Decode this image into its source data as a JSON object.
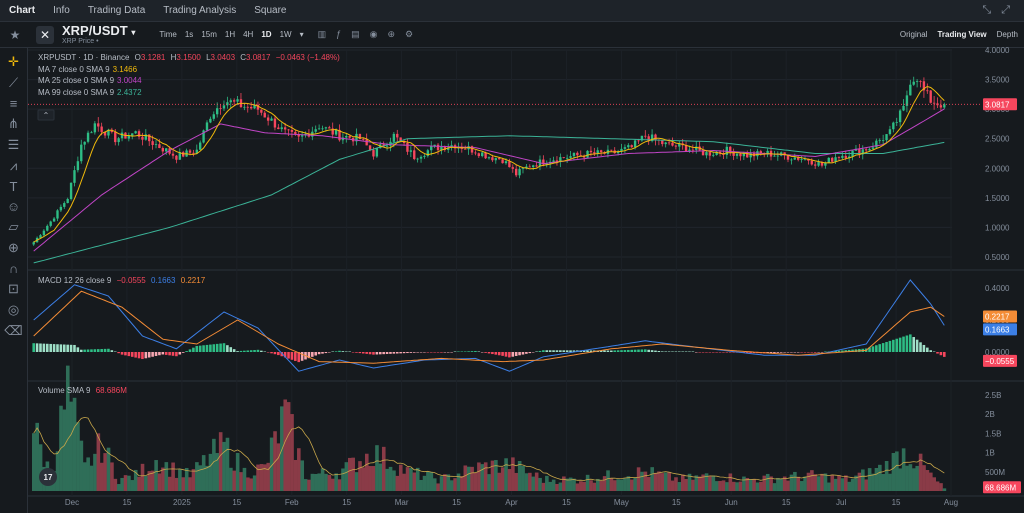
{
  "nav": {
    "tabs": [
      "Chart",
      "Info",
      "Trading Data",
      "Trading Analysis",
      "Square"
    ],
    "active_tab": "Chart"
  },
  "header": {
    "pair": "XRP/USDT",
    "subtitle": "XRP Price",
    "timeframes": [
      "Time",
      "1s",
      "15m",
      "1H",
      "4H",
      "1D",
      "1W"
    ],
    "active_timeframe": "1D",
    "views": [
      "Original",
      "Trading View",
      "Depth"
    ],
    "active_view": "Trading View"
  },
  "sidebar_icons": [
    "crosshair-icon",
    "trendline-icon",
    "horizontal-lines-icon",
    "fork-icon",
    "fib-icon",
    "pattern-icon",
    "text-icon",
    "emoji-icon",
    "ruler-icon",
    "zoom-in-icon",
    "magnet-icon",
    "lock-icon",
    "eye-icon",
    "trash-icon"
  ],
  "legend": {
    "title": "XRPUSDT · 1D · Binance",
    "o_label": "O",
    "o": "3.1281",
    "h_label": "H",
    "h": "3.1500",
    "l_label": "L",
    "l": "3.0403",
    "c_label": "C",
    "c": "3.0817",
    "change": "−0.0463 (−1.48%)",
    "ma7_label": "MA 7 close 0 SMA 9",
    "ma7": "3.1466",
    "ma25_label": "MA 25 close 0 SMA 9",
    "ma25": "3.0044",
    "ma99_label": "MA 99 close 0 SMA 9",
    "ma99": "2.4372"
  },
  "macd_legend": {
    "label": "MACD 12 26 close 9",
    "hist": "−0.0555",
    "macd": "0.1663",
    "signal": "0.2217"
  },
  "volume_legend": {
    "label": "Volume SMA 9",
    "value": "68.686M"
  },
  "colors": {
    "up": "#2ebd85",
    "down": "#f6465d",
    "ma7": "#f0b90b",
    "ma25": "#c145c7",
    "ma99": "#3bb397",
    "macd": "#3c7fe6",
    "signal": "#f48c36"
  },
  "chart_data": {
    "type": "candlestick",
    "price_axis": [
      "4.0000",
      "3.5000",
      "3.0000",
      "2.5000",
      "2.0000",
      "1.5000",
      "1.0000",
      "0.5000"
    ],
    "price_axis_values": [
      4.0,
      3.5,
      3.0,
      2.5,
      2.0,
      1.5,
      1.0,
      0.5
    ],
    "last_price": "3.0817",
    "last_price_value": 3.0817,
    "macd_axis": [
      "0.4000",
      "0.2000",
      "0.0000"
    ],
    "macd_axis_values": [
      0.4,
      0.2,
      0.0
    ],
    "macd_badges": [
      "0.2217",
      "0.1663",
      "−0.0555"
    ],
    "volume_axis": [
      "2.5B",
      "2B",
      "1.5B",
      "1B",
      "500M"
    ],
    "volume_axis_values": [
      2.5,
      2.0,
      1.5,
      1.0,
      0.5
    ],
    "volume_badge": "68.686M",
    "x_labels": [
      "Dec",
      "15",
      "2025",
      "15",
      "Feb",
      "15",
      "Mar",
      "15",
      "Apr",
      "15",
      "May",
      "15",
      "Jun",
      "15",
      "Jul",
      "15",
      "Aug"
    ],
    "price_keypoints": [
      [
        0,
        0.75
      ],
      [
        5,
        1.1
      ],
      [
        10,
        1.5
      ],
      [
        14,
        2.4
      ],
      [
        18,
        2.75
      ],
      [
        24,
        2.5
      ],
      [
        30,
        2.6
      ],
      [
        36,
        2.4
      ],
      [
        42,
        2.2
      ],
      [
        48,
        2.3
      ],
      [
        52,
        2.9
      ],
      [
        56,
        3.15
      ],
      [
        62,
        3.05
      ],
      [
        66,
        3.0
      ],
      [
        70,
        2.8
      ],
      [
        74,
        2.6
      ],
      [
        78,
        2.5
      ],
      [
        84,
        2.72
      ],
      [
        90,
        2.55
      ],
      [
        96,
        2.5
      ],
      [
        100,
        2.25
      ],
      [
        106,
        2.55
      ],
      [
        112,
        2.2
      ],
      [
        118,
        2.35
      ],
      [
        124,
        2.4
      ],
      [
        130,
        2.3
      ],
      [
        134,
        2.2
      ],
      [
        138,
        2.15
      ],
      [
        142,
        1.9
      ],
      [
        146,
        2.05
      ],
      [
        152,
        2.15
      ],
      [
        158,
        2.2
      ],
      [
        164,
        2.25
      ],
      [
        170,
        2.25
      ],
      [
        176,
        2.35
      ],
      [
        180,
        2.55
      ],
      [
        186,
        2.4
      ],
      [
        192,
        2.35
      ],
      [
        198,
        2.25
      ],
      [
        204,
        2.3
      ],
      [
        210,
        2.22
      ],
      [
        216,
        2.25
      ],
      [
        222,
        2.2
      ],
      [
        228,
        2.15
      ],
      [
        232,
        2.05
      ],
      [
        236,
        2.2
      ],
      [
        240,
        2.25
      ],
      [
        246,
        2.35
      ],
      [
        252,
        2.6
      ],
      [
        256,
        3.0
      ],
      [
        258,
        3.5
      ],
      [
        260,
        3.55
      ],
      [
        262,
        3.3
      ],
      [
        264,
        3.15
      ],
      [
        266,
        3.1
      ],
      [
        268,
        3.0817
      ]
    ],
    "ma_keypoints": {
      "ma25": [
        [
          0,
          0.6
        ],
        [
          20,
          1.55
        ],
        [
          40,
          2.3
        ],
        [
          55,
          2.75
        ],
        [
          68,
          2.6
        ],
        [
          85,
          2.55
        ],
        [
          105,
          2.4
        ],
        [
          130,
          2.35
        ],
        [
          150,
          2.08
        ],
        [
          175,
          2.25
        ],
        [
          200,
          2.3
        ],
        [
          230,
          2.2
        ],
        [
          250,
          2.4
        ],
        [
          262,
          2.8
        ],
        [
          268,
          3.0044
        ]
      ],
      "ma99": [
        [
          0,
          0.4
        ],
        [
          40,
          1.0
        ],
        [
          70,
          1.55
        ],
        [
          90,
          2.15
        ],
        [
          110,
          2.5
        ],
        [
          140,
          2.55
        ],
        [
          170,
          2.5
        ],
        [
          200,
          2.45
        ],
        [
          230,
          2.25
        ],
        [
          250,
          2.25
        ],
        [
          268,
          2.4372
        ]
      ]
    },
    "macd_keypoints": {
      "macd": [
        [
          0,
          0.2
        ],
        [
          12,
          0.42
        ],
        [
          22,
          0.35
        ],
        [
          32,
          0.1
        ],
        [
          42,
          0.02
        ],
        [
          56,
          0.25
        ],
        [
          66,
          0.15
        ],
        [
          78,
          -0.12
        ],
        [
          90,
          -0.05
        ],
        [
          100,
          -0.1
        ],
        [
          115,
          -0.05
        ],
        [
          130,
          -0.04
        ],
        [
          140,
          -0.12
        ],
        [
          150,
          -0.03
        ],
        [
          165,
          0.02
        ],
        [
          180,
          0.07
        ],
        [
          195,
          0.03
        ],
        [
          215,
          -0.02
        ],
        [
          230,
          -0.02
        ],
        [
          245,
          0.05
        ],
        [
          258,
          0.45
        ],
        [
          264,
          0.3
        ],
        [
          268,
          0.1663
        ]
      ],
      "signal": [
        [
          0,
          0.1
        ],
        [
          14,
          0.38
        ],
        [
          26,
          0.28
        ],
        [
          38,
          0.08
        ],
        [
          48,
          0.05
        ],
        [
          60,
          0.2
        ],
        [
          72,
          0.05
        ],
        [
          84,
          -0.06
        ],
        [
          100,
          -0.07
        ],
        [
          120,
          -0.04
        ],
        [
          138,
          -0.06
        ],
        [
          150,
          -0.05
        ],
        [
          170,
          0.02
        ],
        [
          185,
          0.05
        ],
        [
          205,
          0.01
        ],
        [
          225,
          -0.02
        ],
        [
          245,
          0.01
        ],
        [
          258,
          0.25
        ],
        [
          264,
          0.28
        ],
        [
          268,
          0.2217
        ]
      ]
    },
    "volume_keypoints": [
      [
        0,
        1.6
      ],
      [
        5,
        0.4
      ],
      [
        10,
        2.6
      ],
      [
        15,
        0.6
      ],
      [
        20,
        1.2
      ],
      [
        25,
        0.3
      ],
      [
        30,
        0.4
      ],
      [
        36,
        0.8
      ],
      [
        40,
        0.6
      ],
      [
        46,
        0.4
      ],
      [
        52,
        0.9
      ],
      [
        56,
        1.2
      ],
      [
        62,
        0.5
      ],
      [
        68,
        0.6
      ],
      [
        74,
        2.0
      ],
      [
        80,
        0.4
      ],
      [
        90,
        0.5
      ],
      [
        100,
        1.0
      ],
      [
        110,
        0.5
      ],
      [
        120,
        0.3
      ],
      [
        130,
        0.6
      ],
      [
        140,
        0.7
      ],
      [
        150,
        0.3
      ],
      [
        160,
        0.3
      ],
      [
        170,
        0.4
      ],
      [
        180,
        0.5
      ],
      [
        190,
        0.3
      ],
      [
        200,
        0.4
      ],
      [
        210,
        0.3
      ],
      [
        220,
        0.35
      ],
      [
        230,
        0.4
      ],
      [
        240,
        0.3
      ],
      [
        250,
        0.6
      ],
      [
        256,
        1.0
      ],
      [
        260,
        0.8
      ],
      [
        264,
        0.4
      ],
      [
        268,
        0.07
      ]
    ]
  }
}
